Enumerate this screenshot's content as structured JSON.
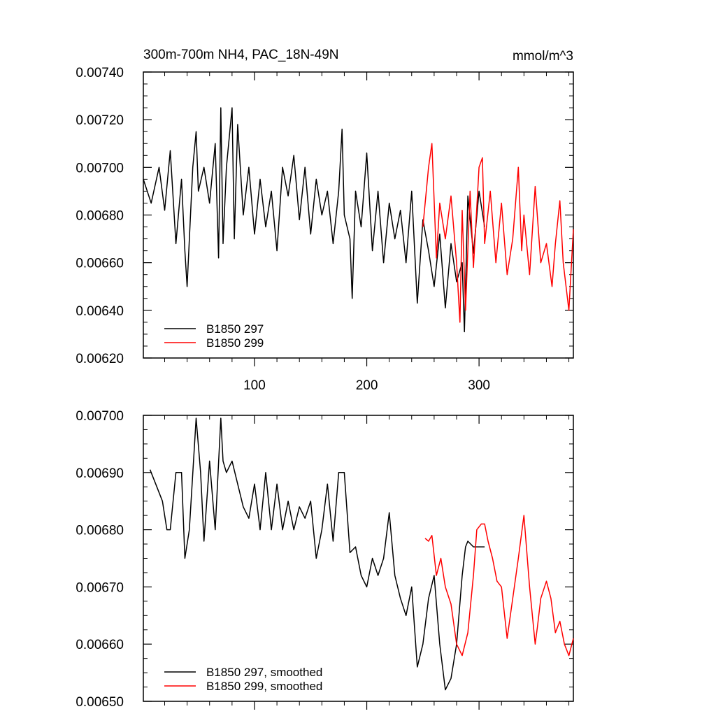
{
  "chart_data": [
    {
      "type": "line",
      "title": "300m-700m NH4, PAC_18N-49N",
      "units": "mmol/m^3",
      "xlabel": "",
      "ylabel": "",
      "xlim": [
        1,
        384
      ],
      "ylim": [
        0.0062,
        0.0074
      ],
      "xticks": [
        100,
        200,
        300
      ],
      "xtick_labels": [
        "100",
        "200",
        "300"
      ],
      "yticks": [
        0.0062,
        0.0064,
        0.0066,
        0.0068,
        0.007,
        0.0072,
        0.0074
      ],
      "ytick_labels": [
        "0.00620",
        "0.00640",
        "0.00660",
        "0.00680",
        "0.00700",
        "0.00720",
        "0.00740"
      ],
      "grid": false,
      "legend_position": "bottom-left",
      "series": [
        {
          "name": "B1850 297",
          "color": "#000000",
          "x": [
            1,
            8,
            15,
            20,
            25,
            30,
            35,
            38,
            40,
            45,
            48,
            50,
            55,
            60,
            65,
            68,
            70,
            72,
            75,
            80,
            82,
            85,
            90,
            95,
            100,
            105,
            110,
            115,
            120,
            125,
            130,
            135,
            140,
            145,
            150,
            155,
            160,
            165,
            170,
            175,
            178,
            180,
            185,
            187,
            190,
            195,
            200,
            205,
            210,
            215,
            220,
            225,
            230,
            235,
            240,
            245,
            250,
            255,
            260,
            265,
            270,
            275,
            280,
            285,
            287,
            290,
            295,
            300,
            305
          ],
          "y": [
            0.00695,
            0.00685,
            0.007,
            0.00682,
            0.00707,
            0.00668,
            0.00695,
            0.00665,
            0.0065,
            0.007,
            0.00715,
            0.0069,
            0.007,
            0.00685,
            0.0071,
            0.00662,
            0.00725,
            0.00668,
            0.007,
            0.00725,
            0.0067,
            0.00718,
            0.0068,
            0.007,
            0.00672,
            0.00695,
            0.00675,
            0.0069,
            0.00665,
            0.007,
            0.00688,
            0.00705,
            0.00678,
            0.007,
            0.00672,
            0.00695,
            0.0068,
            0.0069,
            0.00668,
            0.0069,
            0.00716,
            0.0068,
            0.0067,
            0.00645,
            0.0069,
            0.00675,
            0.00706,
            0.00665,
            0.0069,
            0.0066,
            0.00685,
            0.0067,
            0.00682,
            0.0066,
            0.0069,
            0.00643,
            0.00678,
            0.00665,
            0.0065,
            0.00672,
            0.00641,
            0.00668,
            0.00652,
            0.0066,
            0.00631,
            0.00688,
            0.00664,
            0.0069,
            0.00675
          ]
        },
        {
          "name": "B1850 299",
          "color": "#ff0000",
          "x": [
            250,
            255,
            258,
            262,
            265,
            270,
            275,
            280,
            283,
            285,
            288,
            292,
            295,
            300,
            303,
            305,
            310,
            315,
            320,
            325,
            330,
            335,
            338,
            340,
            345,
            350,
            355,
            360,
            365,
            368,
            372,
            375,
            380,
            384
          ],
          "y": [
            0.00675,
            0.007,
            0.0071,
            0.00662,
            0.00685,
            0.0067,
            0.00688,
            0.0066,
            0.00635,
            0.00682,
            0.0064,
            0.0069,
            0.00658,
            0.007,
            0.00704,
            0.00668,
            0.0069,
            0.0066,
            0.00685,
            0.00655,
            0.0067,
            0.007,
            0.00665,
            0.0068,
            0.00655,
            0.00692,
            0.0066,
            0.00668,
            0.0065,
            0.00668,
            0.00686,
            0.0066,
            0.0064,
            0.00674
          ]
        }
      ]
    },
    {
      "type": "line",
      "title": "",
      "xlabel": "",
      "ylabel": "",
      "xlim": [
        1,
        384
      ],
      "ylim": [
        0.0065,
        0.007
      ],
      "xticks": [
        100,
        200,
        300
      ],
      "xtick_labels": [
        "",
        "",
        ""
      ],
      "yticks": [
        0.0065,
        0.0066,
        0.0067,
        0.0068,
        0.0069,
        0.007
      ],
      "ytick_labels": [
        "0.00650",
        "0.00660",
        "0.00670",
        "0.00680",
        "0.00690",
        "0.00700"
      ],
      "grid": false,
      "legend_position": "bottom-left",
      "series": [
        {
          "name": "B1850 297, smoothed",
          "color": "#000000",
          "x": [
            7,
            12,
            18,
            22,
            25,
            30,
            35,
            38,
            42,
            48,
            52,
            55,
            60,
            65,
            70,
            72,
            75,
            80,
            85,
            90,
            95,
            100,
            105,
            110,
            115,
            120,
            125,
            130,
            135,
            140,
            145,
            150,
            155,
            160,
            165,
            170,
            175,
            180,
            185,
            190,
            195,
            200,
            205,
            210,
            215,
            220,
            225,
            230,
            235,
            240,
            245,
            250,
            255,
            260,
            265,
            270,
            275,
            280,
            285,
            288,
            290,
            295,
            300,
            305
          ],
          "y": [
            0.006905,
            0.00688,
            0.00685,
            0.0068,
            0.0068,
            0.0069,
            0.0069,
            0.00675,
            0.0068,
            0.006995,
            0.0069,
            0.00678,
            0.00692,
            0.0068,
            0.006995,
            0.00692,
            0.0069,
            0.00692,
            0.00688,
            0.00684,
            0.00682,
            0.00688,
            0.0068,
            0.0069,
            0.0068,
            0.00688,
            0.0068,
            0.00685,
            0.0068,
            0.00684,
            0.00682,
            0.00685,
            0.00675,
            0.0068,
            0.00688,
            0.00678,
            0.0069,
            0.0069,
            0.00676,
            0.00677,
            0.00672,
            0.0067,
            0.00675,
            0.00672,
            0.00675,
            0.00683,
            0.00672,
            0.00668,
            0.00665,
            0.0067,
            0.00656,
            0.0066,
            0.00668,
            0.00672,
            0.0066,
            0.00652,
            0.00654,
            0.0066,
            0.00672,
            0.00677,
            0.00678,
            0.00677,
            0.00677,
            0.00677
          ]
        },
        {
          "name": "B1850 299, smoothed",
          "color": "#ff0000",
          "x": [
            252,
            255,
            258,
            262,
            266,
            270,
            275,
            280,
            285,
            290,
            295,
            298,
            302,
            305,
            308,
            312,
            316,
            320,
            325,
            330,
            335,
            340,
            345,
            350,
            352,
            355,
            360,
            364,
            368,
            372,
            376,
            380,
            384
          ],
          "y": [
            0.006785,
            0.00678,
            0.00679,
            0.00672,
            0.00675,
            0.0067,
            0.00667,
            0.0066,
            0.00658,
            0.00662,
            0.00672,
            0.0068,
            0.00681,
            0.00681,
            0.00678,
            0.00675,
            0.00671,
            0.0067,
            0.00661,
            0.00668,
            0.00675,
            0.006825,
            0.0067,
            0.0066,
            0.00663,
            0.00668,
            0.00671,
            0.00668,
            0.00662,
            0.00664,
            0.0066,
            0.00658,
            0.00661
          ]
        }
      ]
    }
  ]
}
